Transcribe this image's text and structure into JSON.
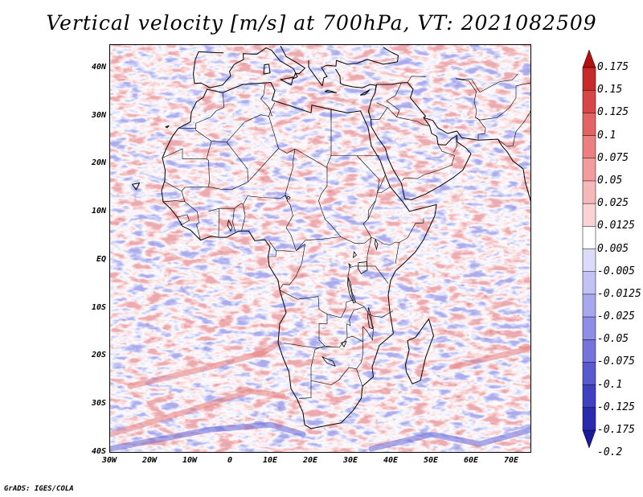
{
  "title": "Vertical velocity [m/s] at 700hPa, VT: 2021082509",
  "map": {
    "variable": "Vertical velocity",
    "level": "700hPa",
    "units": "m/s",
    "valid_time": "2021082509",
    "lat_range": [
      -40,
      45
    ],
    "lon_range": [
      -30,
      75
    ],
    "lat_labels": [
      "40N",
      "30N",
      "20N",
      "10N",
      "EQ",
      "10S",
      "20S",
      "30S",
      "40S"
    ],
    "lon_labels": [
      "30W",
      "20W",
      "10W",
      "0",
      "10E",
      "20E",
      "30E",
      "40E",
      "50E",
      "60E",
      "70E"
    ]
  },
  "legend": {
    "levels": [
      "0.175",
      "0.15",
      "0.125",
      "0.1",
      "0.075",
      "0.05",
      "0.025",
      "0.0125",
      "0.005",
      "-0.005",
      "-0.0125",
      "-0.025",
      "-0.05",
      "-0.075",
      "-0.1",
      "-0.125",
      "-0.175",
      "-0.2"
    ],
    "colors": [
      "#b01010",
      "#c82a2a",
      "#d84646",
      "#e46464",
      "#ec8080",
      "#f29c9c",
      "#f6b8b8",
      "#fad4d4",
      "#ffffff",
      "#dcdcfa",
      "#c2c2f4",
      "#a8a8ee",
      "#8e8ee6",
      "#7474dc",
      "#5a5ad0",
      "#4040c2",
      "#2a2ab0",
      "#1a1a9a"
    ]
  },
  "credit": "GrADS: IGES/COLA"
}
